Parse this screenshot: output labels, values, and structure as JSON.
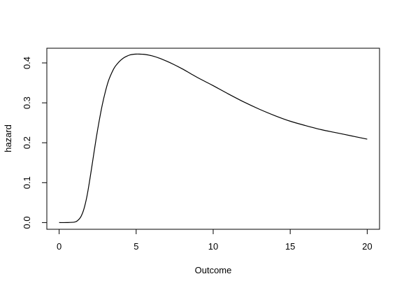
{
  "chart_data": {
    "type": "line",
    "title": "",
    "xlabel": "Outcome",
    "ylabel": "hazard",
    "xlim": [
      -0.8,
      20.8
    ],
    "ylim": [
      -0.0168,
      0.4368
    ],
    "xticks": [
      0,
      5,
      10,
      15,
      20
    ],
    "xtick_labels": [
      "0",
      "5",
      "10",
      "15",
      "20"
    ],
    "yticks": [
      0.0,
      0.1,
      0.2,
      0.3,
      0.4
    ],
    "ytick_labels": [
      "0.0",
      "0.1",
      "0.2",
      "0.3",
      "0.4"
    ],
    "grid": false,
    "series": [
      {
        "color": "#000000",
        "x": [
          0,
          0.5,
          1.0,
          1.2,
          1.4,
          1.6,
          1.8,
          2.0,
          2.2,
          2.4,
          2.6,
          2.8,
          3.0,
          3.2,
          3.4,
          3.6,
          3.8,
          4.0,
          4.2,
          4.4,
          4.6,
          4.8,
          5.0,
          5.2,
          5.4,
          5.6,
          6.0,
          6.5,
          7.0,
          7.5,
          8.0,
          8.5,
          9.0,
          9.5,
          10.0,
          11.0,
          12.0,
          13.0,
          14.0,
          15.0,
          16.0,
          17.0,
          18.0,
          19.0,
          20.0
        ],
        "y": [
          0.0,
          0.0,
          0.0012,
          0.005,
          0.014,
          0.033,
          0.065,
          0.11,
          0.16,
          0.21,
          0.255,
          0.295,
          0.328,
          0.355,
          0.374,
          0.389,
          0.399,
          0.407,
          0.413,
          0.417,
          0.42,
          0.4215,
          0.4222,
          0.4222,
          0.4218,
          0.421,
          0.418,
          0.412,
          0.404,
          0.395,
          0.385,
          0.374,
          0.363,
          0.353,
          0.343,
          0.322,
          0.302,
          0.284,
          0.268,
          0.254,
          0.243,
          0.233,
          0.225,
          0.217,
          0.209
        ]
      }
    ]
  }
}
